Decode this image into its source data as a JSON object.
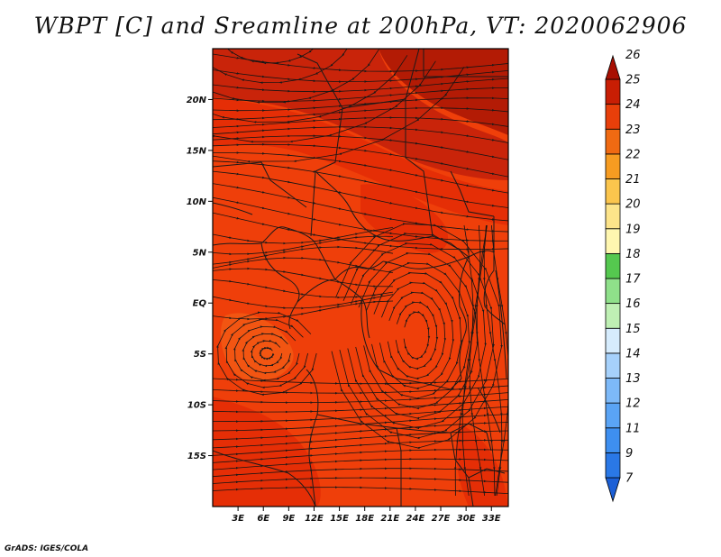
{
  "title": "WBPT [C] and Sreamline at 200hPa, VT: 2020062906",
  "credit": "GrADS: IGES/COLA",
  "lat_labels": [
    "20N",
    "15N",
    "10N",
    "5N",
    "EQ",
    "5S",
    "10S",
    "15S"
  ],
  "lat_values": [
    20,
    15,
    10,
    5,
    0,
    -5,
    -10,
    -15
  ],
  "lon_labels": [
    "3E",
    "6E",
    "9E",
    "12E",
    "15E",
    "18E",
    "21E",
    "24E",
    "27E",
    "30E",
    "33E"
  ],
  "lon_values": [
    3,
    6,
    9,
    12,
    15,
    18,
    21,
    24,
    27,
    30,
    33
  ],
  "map_extent": {
    "lon_min": 0,
    "lon_max": 35,
    "lat_min": -20,
    "lat_max": 25
  },
  "colorbar": {
    "labels": [
      "7",
      "9",
      "11",
      "12",
      "13",
      "14",
      "15",
      "16",
      "17",
      "18",
      "19",
      "20",
      "21",
      "22",
      "23",
      "24",
      "25",
      "26"
    ],
    "colors": [
      "#1b5fd6",
      "#2a78e6",
      "#3e8ff0",
      "#5aa4f5",
      "#7db9f8",
      "#a6d1fb",
      "#d6ecfd",
      "#bff0b4",
      "#8fe08a",
      "#55c84f",
      "#fff7b0",
      "#fde48a",
      "#fbc54d",
      "#f79c21",
      "#f06a12",
      "#e83f0a",
      "#c81e04",
      "#a80f02"
    ]
  },
  "field_colors": {
    "base": "#ef3f0a",
    "warm": "#e52e06",
    "hot": "#c9240a",
    "hottest": "#b31b05",
    "cool": "#f25512"
  }
}
